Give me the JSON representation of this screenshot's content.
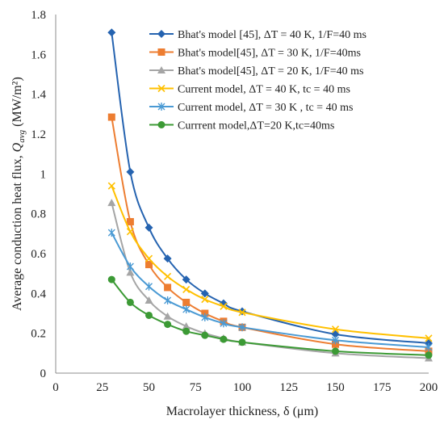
{
  "chart_data": {
    "type": "line",
    "title": "",
    "xlabel": "Macrolayer thickness, δ (μm)",
    "ylabel": "Average conduction heat flux, Q_avg (MW/m²)",
    "ylabel_parts": {
      "main": "Average conduction heat flux, ",
      "symbol": "Q",
      "subscript": "avg",
      "units": " (MW/m²)"
    },
    "xlim": [
      0,
      200
    ],
    "ylim": [
      0,
      1.8
    ],
    "xticks": [
      0,
      25,
      50,
      75,
      100,
      125,
      150,
      175,
      200
    ],
    "yticks": [
      0,
      0.2,
      0.4,
      0.6,
      0.8,
      1,
      1.2,
      1.4,
      1.6,
      1.8
    ],
    "xtick_labels": [
      "0",
      "25",
      "50",
      "75",
      "100",
      "125",
      "150",
      "175",
      "200"
    ],
    "ytick_labels": [
      "0",
      "0.2",
      "0.4",
      "0.6",
      "0.8",
      "1",
      "1.2",
      "1.4",
      "1.6",
      "1.8"
    ],
    "grid": false,
    "legend_position": "top-right",
    "x": [
      30,
      40,
      50,
      60,
      70,
      80,
      90,
      100,
      150,
      200
    ],
    "series": [
      {
        "name": "Bhat's model [45], ΔT = 40 K, 1/F=40 ms",
        "color": "#2563b0",
        "marker": "diamond",
        "values": [
          1.71,
          1.01,
          0.73,
          0.575,
          0.47,
          0.4,
          0.35,
          0.31,
          0.195,
          0.15
        ]
      },
      {
        "name": "Bhat's model[45], ΔT = 30 K, 1/F=40ms",
        "color": "#ed7d31",
        "marker": "square",
        "values": [
          1.285,
          0.76,
          0.545,
          0.43,
          0.355,
          0.3,
          0.26,
          0.23,
          0.145,
          0.11
        ]
      },
      {
        "name": "Bhat's model[45], ΔT = 20 K, 1/F=40 ms",
        "color": "#a5a5a5",
        "marker": "triangle",
        "values": [
          0.855,
          0.505,
          0.365,
          0.285,
          0.235,
          0.2,
          0.175,
          0.155,
          0.1,
          0.075
        ]
      },
      {
        "name": "Current model, ΔT = 40 K, tc = 40 ms",
        "color": "#ffc000",
        "marker": "x",
        "values": [
          0.94,
          0.71,
          0.575,
          0.485,
          0.42,
          0.37,
          0.335,
          0.305,
          0.22,
          0.175
        ]
      },
      {
        "name": "Current model, ΔT = 30 K , tc = 40 ms",
        "color": "#4a9ad4",
        "marker": "asterisk",
        "values": [
          0.705,
          0.535,
          0.435,
          0.365,
          0.32,
          0.28,
          0.25,
          0.23,
          0.165,
          0.13
        ]
      },
      {
        "name": "Currrent model,ΔT=20 K,tc=40ms",
        "color": "#3c9a35",
        "marker": "circle",
        "values": [
          0.47,
          0.355,
          0.29,
          0.245,
          0.21,
          0.19,
          0.17,
          0.155,
          0.11,
          0.09
        ]
      }
    ]
  }
}
